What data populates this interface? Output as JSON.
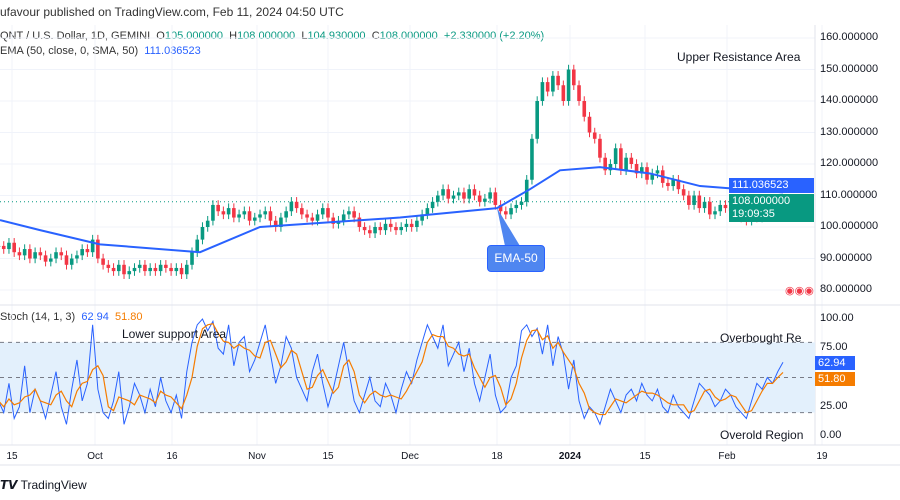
{
  "header": {
    "attribution": "ufavour published on TradingView.com, Feb 11, 2024 04:50 UTC"
  },
  "legend": {
    "symbol": "QNT / U.S. Dollar, 1D, GEMINI",
    "o_label": "O",
    "o": "105.000000",
    "h_label": "H",
    "h": "108.000000",
    "l_label": "L",
    "l": "104.930000",
    "c_label": "C",
    "c": "108.000000",
    "change": "+2.330000 (+2.20%)",
    "ema_label": "EMA (50, close, 0, SMA, 50)",
    "ema_value": "111.036523",
    "stoch_label": "Stoch (14, 1, 3)",
    "stoch_k": "62.94",
    "stoch_d": "51.80"
  },
  "colors": {
    "up": "#089981",
    "down": "#f23645",
    "ema": "#2962ff",
    "stoch_k": "#2962ff",
    "stoch_d": "#f57c00",
    "band": "#e3f0fc"
  },
  "chart_data": [
    {
      "type": "candlestick",
      "title": "QNT / U.S. Dollar, 1D, GEMINI",
      "ylim": [
        75,
        165
      ],
      "yticks": [
        "160.000000",
        "150.000000",
        "140.000000",
        "130.000000",
        "120.000000",
        "110.000000",
        "100.000000",
        "90.000000",
        "80.000000"
      ],
      "ytick_values": [
        160,
        150,
        140,
        130,
        120,
        110,
        100,
        90,
        80
      ],
      "xticks": [
        "15",
        "Oct",
        "16",
        "Nov",
        "15",
        "Dec",
        "18",
        "2024",
        "15",
        "Feb",
        "19"
      ],
      "closes": [
        94,
        93,
        95,
        92,
        91,
        93,
        90,
        92,
        91,
        89,
        90,
        92,
        91,
        88,
        90,
        91,
        93,
        92,
        96,
        90,
        88,
        87,
        86,
        88,
        85,
        86,
        87,
        88,
        86,
        87,
        86,
        88,
        87,
        86,
        87,
        85,
        88,
        92,
        96,
        100,
        102,
        107,
        105,
        104,
        106,
        103,
        104,
        105,
        102,
        103,
        104,
        105,
        102,
        100,
        103,
        105,
        108,
        106,
        104,
        103,
        102,
        104,
        106,
        103,
        101,
        102,
        104,
        105,
        103,
        100,
        99,
        98,
        100,
        99,
        101,
        100,
        99,
        100,
        101,
        100,
        102,
        104,
        106,
        108,
        110,
        112,
        109,
        110,
        111,
        109,
        112,
        110,
        108,
        109,
        111,
        107,
        105,
        104,
        106,
        107,
        108,
        115,
        128,
        140,
        146,
        143,
        148,
        145,
        140,
        150,
        145,
        140,
        135,
        130,
        128,
        122,
        118,
        120,
        125,
        118,
        122,
        120,
        117,
        119,
        115,
        117,
        118,
        114,
        113,
        115,
        112,
        110,
        107,
        110,
        106,
        108,
        104,
        105,
        107,
        106,
        105,
        104,
        103,
        102,
        105,
        103,
        106,
        105,
        107,
        106,
        108
      ],
      "ema": {
        "name": "EMA (50, close, 0, SMA, 50)",
        "points": [
          [
            0,
            102.2
          ],
          [
            40,
            99
          ],
          [
            100,
            94.5
          ],
          [
            200,
            92
          ],
          [
            260,
            100
          ],
          [
            400,
            103
          ],
          [
            497,
            106
          ],
          [
            530,
            112
          ],
          [
            560,
            118
          ],
          [
            600,
            119
          ],
          [
            650,
            117
          ],
          [
            700,
            113
          ],
          [
            783,
            111
          ]
        ]
      },
      "last_price": "108.000000",
      "last_price_value": 108,
      "ema_last": "111.036523",
      "countdown": "19:09:35",
      "annotations": {
        "upper": "Upper Resistance Area",
        "callout": "EMA-50"
      }
    },
    {
      "type": "line",
      "title": "Stoch (14, 1, 3)",
      "ylim": [
        0,
        100
      ],
      "yticks": [
        "100.00",
        "75.00",
        "25.00",
        "0.00"
      ],
      "ytick_values": [
        100,
        75,
        25,
        0
      ],
      "band": [
        20,
        80
      ],
      "k": [
        30,
        20,
        45,
        15,
        25,
        60,
        20,
        40,
        30,
        15,
        35,
        55,
        25,
        10,
        40,
        65,
        30,
        45,
        95,
        40,
        20,
        15,
        30,
        55,
        10,
        25,
        45,
        35,
        20,
        40,
        25,
        50,
        30,
        20,
        35,
        15,
        55,
        80,
        95,
        100,
        90,
        98,
        75,
        70,
        95,
        60,
        80,
        85,
        55,
        65,
        80,
        95,
        70,
        45,
        60,
        85,
        75,
        50,
        40,
        30,
        55,
        70,
        45,
        25,
        40,
        60,
        80,
        55,
        30,
        20,
        35,
        50,
        30,
        25,
        45,
        35,
        20,
        40,
        55,
        45,
        65,
        80,
        95,
        85,
        75,
        95,
        60,
        70,
        80,
        55,
        75,
        45,
        30,
        50,
        70,
        35,
        20,
        25,
        50,
        60,
        90,
        95,
        85,
        92,
        70,
        95,
        60,
        85,
        70,
        40,
        65,
        30,
        15,
        25,
        20,
        10,
        25,
        40,
        30,
        20,
        35,
        40,
        30,
        45,
        35,
        30,
        40,
        25,
        20,
        35,
        25,
        20,
        15,
        30,
        45,
        40,
        35,
        25,
        30,
        40,
        35,
        25,
        20,
        15,
        30,
        45,
        40,
        50,
        45,
        55,
        63
      ],
      "annotations": {
        "lower": "Lower support Area",
        "overbought": "Overbought Re",
        "oversold": "Overold Region"
      }
    }
  ],
  "footer": {
    "brand": "TradingView"
  }
}
